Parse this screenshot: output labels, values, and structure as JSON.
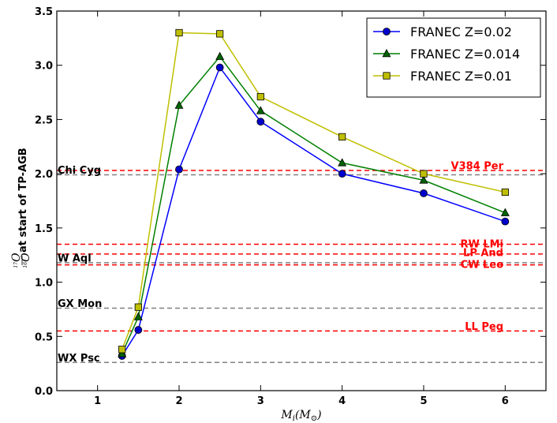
{
  "chart_data": {
    "type": "line",
    "xlabel": "M_i(M_⊙)",
    "xlabel_parts": {
      "main": "M",
      "sub": "i",
      "open": "(M",
      "sub2": "⊙",
      "close": ")"
    },
    "ylabel": "¹⁷O/¹⁶O at start of TP-AGB",
    "ylabel_parts": {
      "num": "17",
      "num_letter": "O",
      "den": "16",
      "den_letter": "O",
      "rest": "at start of TP-AGB"
    },
    "xlim": [
      0.5,
      6.5
    ],
    "ylim": [
      0.0,
      3.5
    ],
    "xticks": [
      1,
      2,
      3,
      4,
      5,
      6
    ],
    "xtick_labels": [
      "1",
      "2",
      "3",
      "4",
      "5",
      "6"
    ],
    "yticks": [
      0.0,
      0.5,
      1.0,
      1.5,
      2.0,
      2.5,
      3.0,
      3.5
    ],
    "ytick_labels": [
      "0.0",
      "0.5",
      "1.0",
      "1.5",
      "2.0",
      "2.5",
      "3.0",
      "3.5"
    ],
    "grid": false,
    "legend_position": "top-right",
    "x": [
      1.3,
      1.5,
      2.0,
      2.5,
      3.0,
      4.0,
      5.0,
      6.0
    ],
    "series": [
      {
        "name": "FRANEC Z=0.02",
        "color": "#0000ff",
        "marker": "circle",
        "marker_color": "#0000cc",
        "values": [
          0.32,
          0.56,
          2.04,
          2.98,
          2.48,
          2.0,
          1.82,
          1.56
        ]
      },
      {
        "name": "FRANEC Z=0.014",
        "color": "#007f00",
        "marker": "triangle",
        "marker_color": "#006400",
        "values": [
          0.34,
          0.68,
          2.63,
          3.08,
          2.58,
          2.1,
          1.94,
          1.64
        ]
      },
      {
        "name": "FRANEC Z=0.01",
        "color": "#bfbf00",
        "marker": "square",
        "marker_color": "#bfbf00",
        "values": [
          0.38,
          0.77,
          3.3,
          3.29,
          2.71,
          2.34,
          2.0,
          1.83
        ]
      }
    ],
    "reference_lines": [
      {
        "y": 2.03,
        "color": "#ff0000",
        "label": "V384 Per",
        "label_side": "right",
        "label_y": 2.07
      },
      {
        "y": 1.35,
        "color": "#ff0000",
        "label": "RW LMi",
        "label_side": "right",
        "label_y": 1.35
      },
      {
        "y": 1.26,
        "color": "#ff0000",
        "label": "LP And",
        "label_side": "right",
        "label_y": 1.27
      },
      {
        "y": 1.16,
        "color": "#ff0000",
        "label": "CW Leo",
        "label_side": "right",
        "label_y": 1.16
      },
      {
        "y": 0.55,
        "color": "#ff0000",
        "label": "LL Peg",
        "label_side": "right",
        "label_y": 0.59
      },
      {
        "y": 1.99,
        "color": "#808080",
        "label": "Chi Cyg",
        "label_side": "left",
        "label_y": 2.03
      },
      {
        "y": 1.18,
        "color": "#808080",
        "label": "W Aql",
        "label_side": "left",
        "label_y": 1.22
      },
      {
        "y": 0.76,
        "color": "#808080",
        "label": "GX Mon",
        "label_side": "left",
        "label_y": 0.8
      },
      {
        "y": 0.26,
        "color": "#808080",
        "label": "WX Psc",
        "label_side": "left",
        "label_y": 0.3
      }
    ]
  }
}
